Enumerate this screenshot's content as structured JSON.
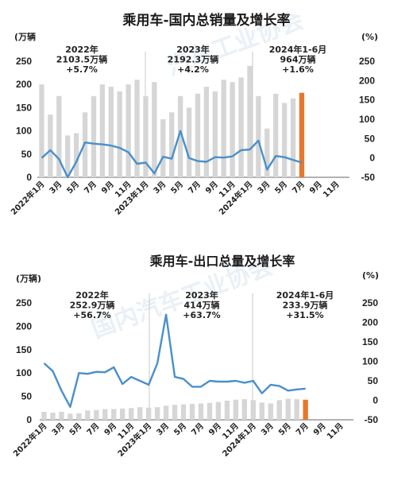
{
  "chart_data": [
    {
      "type": "bar+line",
      "title": "乘用车-国内总销量及增长率",
      "ylabel_left": "(万辆",
      "ylabel_right": "(%)",
      "ylim_left": [
        0,
        250
      ],
      "ylim_right": [
        -50,
        250
      ],
      "yticks_left": [
        "250",
        "200",
        "150",
        "100",
        "50",
        "0"
      ],
      "yticks_right": [
        "250",
        "200",
        "150",
        "100",
        "50",
        "0",
        "-50"
      ],
      "x_labels": [
        "2022年1月",
        "3月",
        "5月",
        "7月",
        "9月",
        "11月",
        "2023年1月",
        "3月",
        "5月",
        "7月",
        "9月",
        "11月",
        "2024年1月",
        "3月",
        "5月",
        "7月",
        "9月",
        "11月"
      ],
      "series": [
        {
          "kind": "bar",
          "values": [
            200,
            135,
            175,
            90,
            95,
            140,
            175,
            200,
            195,
            185,
            200,
            210,
            175,
            205,
            125,
            140,
            175,
            150,
            180,
            195,
            185,
            210,
            205,
            215,
            240,
            175,
            105,
            180,
            160,
            170,
            182
          ]
        },
        {
          "kind": "line",
          "values": [
            0,
            20,
            -3,
            -50,
            -10,
            40,
            37,
            35,
            32,
            26,
            15,
            -15,
            -12,
            -40,
            3,
            -2,
            70,
            0,
            -8,
            -10,
            2,
            1,
            4,
            20,
            22,
            45,
            -30,
            5,
            2,
            -5,
            -12
          ]
        }
      ],
      "highlight_bar_index": 30,
      "annotations": [
        {
          "line1": "2022年",
          "line2": "2103.5万辆",
          "line3": "+5.7%"
        },
        {
          "line1": "2023年",
          "line2": "2192.3万辆",
          "line3": "+4.2%"
        },
        {
          "line1": "2024年1-6月",
          "line2": "964万辆",
          "line3": "+1.6%"
        }
      ],
      "colors": {
        "bar": "#d6d6d6",
        "highlight": "#e8772e",
        "line": "#4a8fcb"
      }
    },
    {
      "type": "bar+line",
      "title": "乘用车-出口总量及增长率",
      "ylabel_left": "(万辆)",
      "ylabel_right": "(%)",
      "ylim_left": [
        0,
        250
      ],
      "ylim_right": [
        -50,
        250
      ],
      "yticks_left": [
        "250",
        "200",
        "150",
        "100",
        "50",
        "0"
      ],
      "yticks_right": [
        "250",
        "200",
        "150",
        "100",
        "50",
        "0",
        "-50"
      ],
      "x_labels": [
        "2022年1月",
        "3月",
        "5月",
        "7月",
        "9月",
        "11月",
        "2023年1月",
        "3月",
        "5月",
        "7月",
        "9月",
        "11月",
        "2024年1月",
        "3月",
        "5月",
        "7月",
        "9月",
        "11月"
      ],
      "series": [
        {
          "kind": "bar",
          "values": [
            17,
            15,
            17,
            13,
            14,
            20,
            21,
            23,
            23,
            24,
            25,
            27,
            26,
            27,
            30,
            32,
            33,
            34,
            35,
            36,
            38,
            41,
            43,
            44,
            42,
            37,
            35,
            42,
            45,
            44,
            43
          ]
        },
        {
          "kind": "line",
          "values": [
            95,
            75,
            25,
            -17,
            70,
            68,
            73,
            72,
            85,
            42,
            60,
            50,
            40,
            95,
            220,
            60,
            55,
            35,
            35,
            50,
            48,
            48,
            50,
            45,
            50,
            18,
            40,
            37,
            25,
            28,
            30
          ]
        }
      ],
      "highlight_bar_index": 30,
      "annotations": [
        {
          "line1": "2022年",
          "line2": "252.9万辆",
          "line3": "+56.7%"
        },
        {
          "line1": "2023年",
          "line2": "414万辆",
          "line3": "+63.7%"
        },
        {
          "line1": "2024年1-6月",
          "line2": "233.9万辆",
          "line3": "+31.5%"
        }
      ],
      "colors": {
        "bar": "#d6d6d6",
        "highlight": "#e8772e",
        "line": "#4a8fcb"
      }
    }
  ],
  "watermarks": [
    "汽车工业协会",
    "国内汽车工业协会"
  ]
}
